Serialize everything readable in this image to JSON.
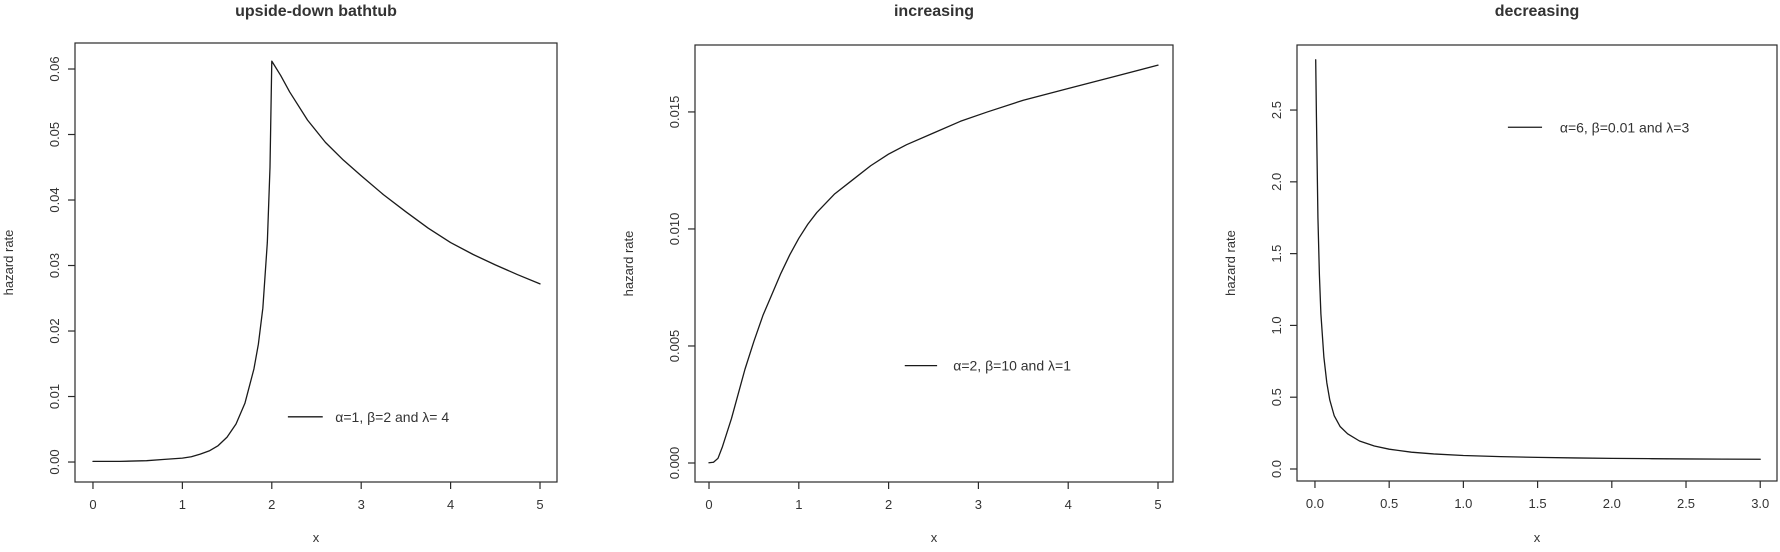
{
  "figure": {
    "background": "#ffffff",
    "text_color": "#333333",
    "axis_color": "#2a2a2a",
    "curve_color": "#1a1a1a"
  },
  "chart_data": [
    {
      "type": "line",
      "title": "upside-down bathtub",
      "xlabel": "x",
      "ylabel": "hazard rate",
      "xlim": [
        -0.201,
        5.19
      ],
      "ylim": [
        -0.00305,
        0.06397
      ],
      "x_ticks": {
        "values": [
          0,
          1,
          2,
          3,
          4,
          5
        ],
        "labels": [
          "0",
          "1",
          "2",
          "3",
          "4",
          "5"
        ]
      },
      "y_ticks": {
        "values": [
          0,
          0.01,
          0.02,
          0.03,
          0.04,
          0.05,
          0.06
        ],
        "labels": [
          "0.00",
          "0.01",
          "0.02",
          "0.03",
          "0.04",
          "0.05",
          "0.06"
        ]
      },
      "grid": false,
      "legend": {
        "label": "α=1, β=2 and λ= 4",
        "line_x": [
          2.18,
          2.57
        ],
        "text_x": 2.71,
        "y": 0.0069
      },
      "series": [
        {
          "name": "hazard rate, alpha=1 beta=2 lambda=4",
          "x": [
            0,
            0.3,
            0.6,
            0.8,
            1.0,
            1.1,
            1.2,
            1.3,
            1.4,
            1.5,
            1.6,
            1.7,
            1.8,
            1.85,
            1.9,
            1.95,
            1.98,
            2.0,
            2.1,
            2.2,
            2.4,
            2.6,
            2.8,
            3.0,
            3.25,
            3.5,
            3.75,
            4.0,
            4.25,
            4.5,
            4.75,
            5.0
          ],
          "y": [
            0.0001,
            0.0001,
            0.0002,
            0.0004,
            0.0006,
            0.0008,
            0.0012,
            0.0017,
            0.0025,
            0.0038,
            0.0058,
            0.009,
            0.0142,
            0.018,
            0.0235,
            0.0335,
            0.045,
            0.0612,
            0.059,
            0.0565,
            0.0522,
            0.0488,
            0.0461,
            0.0437,
            0.0408,
            0.0382,
            0.0357,
            0.0335,
            0.0317,
            0.0301,
            0.0286,
            0.0272
          ]
        }
      ]
    },
    {
      "type": "line",
      "title": "increasing",
      "xlabel": "x",
      "ylabel": "hazard rate",
      "xlim": [
        -0.156,
        5.167
      ],
      "ylim": [
        -0.000812,
        0.01786
      ],
      "x_ticks": {
        "values": [
          0,
          1,
          2,
          3,
          4,
          5
        ],
        "labels": [
          "0",
          "1",
          "2",
          "3",
          "4",
          "5"
        ]
      },
      "y_ticks": {
        "values": [
          0,
          0.005,
          0.01,
          0.015
        ],
        "labels": [
          "0.000",
          "0.005",
          "0.010",
          "0.015"
        ]
      },
      "grid": false,
      "legend": {
        "label": "α=2, β=10 and λ=1",
        "line_x": [
          2.18,
          2.54
        ],
        "text_x": 2.72,
        "y": 0.00416
      },
      "series": [
        {
          "name": "hazard rate, alpha=2 beta=10 lambda=1",
          "x": [
            0,
            0.05,
            0.1,
            0.15,
            0.2,
            0.25,
            0.3,
            0.4,
            0.5,
            0.6,
            0.7,
            0.8,
            0.9,
            1.0,
            1.1,
            1.2,
            1.4,
            1.6,
            1.8,
            2.0,
            2.2,
            2.5,
            2.8,
            3.1,
            3.5,
            4.0,
            4.5,
            5.0
          ],
          "y": [
            1e-05,
            3e-05,
            0.0002,
            0.0007,
            0.0013,
            0.0019,
            0.0026,
            0.004,
            0.0052,
            0.0063,
            0.0072,
            0.0081,
            0.0089,
            0.0096,
            0.0102,
            0.0107,
            0.0115,
            0.0121,
            0.0127,
            0.0132,
            0.0136,
            0.0141,
            0.0146,
            0.015,
            0.0155,
            0.016,
            0.0165,
            0.017
          ]
        }
      ]
    },
    {
      "type": "line",
      "title": "decreasing",
      "xlabel": "x",
      "ylabel": "hazard rate",
      "xlim": [
        -0.121,
        3.113
      ],
      "ylim": [
        -0.0836,
        2.953
      ],
      "x_ticks": {
        "values": [
          0,
          0.5,
          1.0,
          1.5,
          2.0,
          2.5,
          3.0
        ],
        "labels": [
          "0.0",
          "0.5",
          "1.0",
          "1.5",
          "2.0",
          "2.5",
          "3.0"
        ]
      },
      "y_ticks": {
        "values": [
          0,
          0.5,
          1.0,
          1.5,
          2.0,
          2.5
        ],
        "labels": [
          "0.0",
          "0.5",
          "1.0",
          "1.5",
          "2.0",
          "2.5"
        ]
      },
      "grid": false,
      "legend": {
        "label": "α=6, β=0.01 and λ=3",
        "line_x": [
          1.3,
          1.53
        ],
        "text_x": 1.65,
        "y": 2.38
      },
      "series": [
        {
          "name": "hazard rate, alpha=6 beta=0.01 lambda=3",
          "x": [
            0.005,
            0.01,
            0.02,
            0.03,
            0.04,
            0.06,
            0.08,
            0.1,
            0.13,
            0.17,
            0.22,
            0.3,
            0.4,
            0.5,
            0.65,
            0.8,
            1.0,
            1.25,
            1.5,
            1.75,
            2.0,
            2.25,
            2.5,
            2.75,
            3.0
          ],
          "y": [
            2.85,
            2.45,
            1.75,
            1.35,
            1.08,
            0.78,
            0.6,
            0.48,
            0.37,
            0.295,
            0.245,
            0.195,
            0.16,
            0.138,
            0.117,
            0.105,
            0.094,
            0.086,
            0.081,
            0.077,
            0.074,
            0.072,
            0.07,
            0.069,
            0.068
          ]
        }
      ]
    }
  ]
}
